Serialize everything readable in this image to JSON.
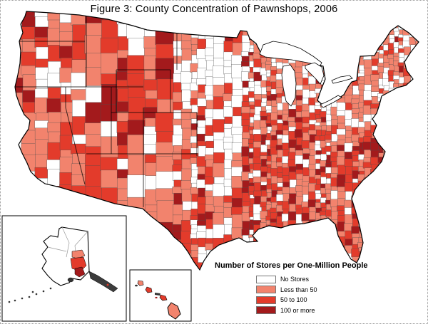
{
  "figure": {
    "title": "Figure 3: County Concentration of Pawnshops, 2006"
  },
  "legend": {
    "title": "Number of Stores per One-Million People",
    "items": [
      {
        "label": "No Stores",
        "color": "#FFFFFF"
      },
      {
        "label": "Less than 50",
        "color": "#F2836D"
      },
      {
        "label": "50 to 100",
        "color": "#E33B2B"
      },
      {
        "label": "100 or more",
        "color": "#A31A1C"
      }
    ]
  },
  "map": {
    "unit": "counties",
    "regions": [
      "contiguous United States",
      "Alaska",
      "Hawaii"
    ],
    "county_border_color": "#4d4d4d",
    "state_border_color": "#000000",
    "water_color": "#FFFFFF"
  }
}
